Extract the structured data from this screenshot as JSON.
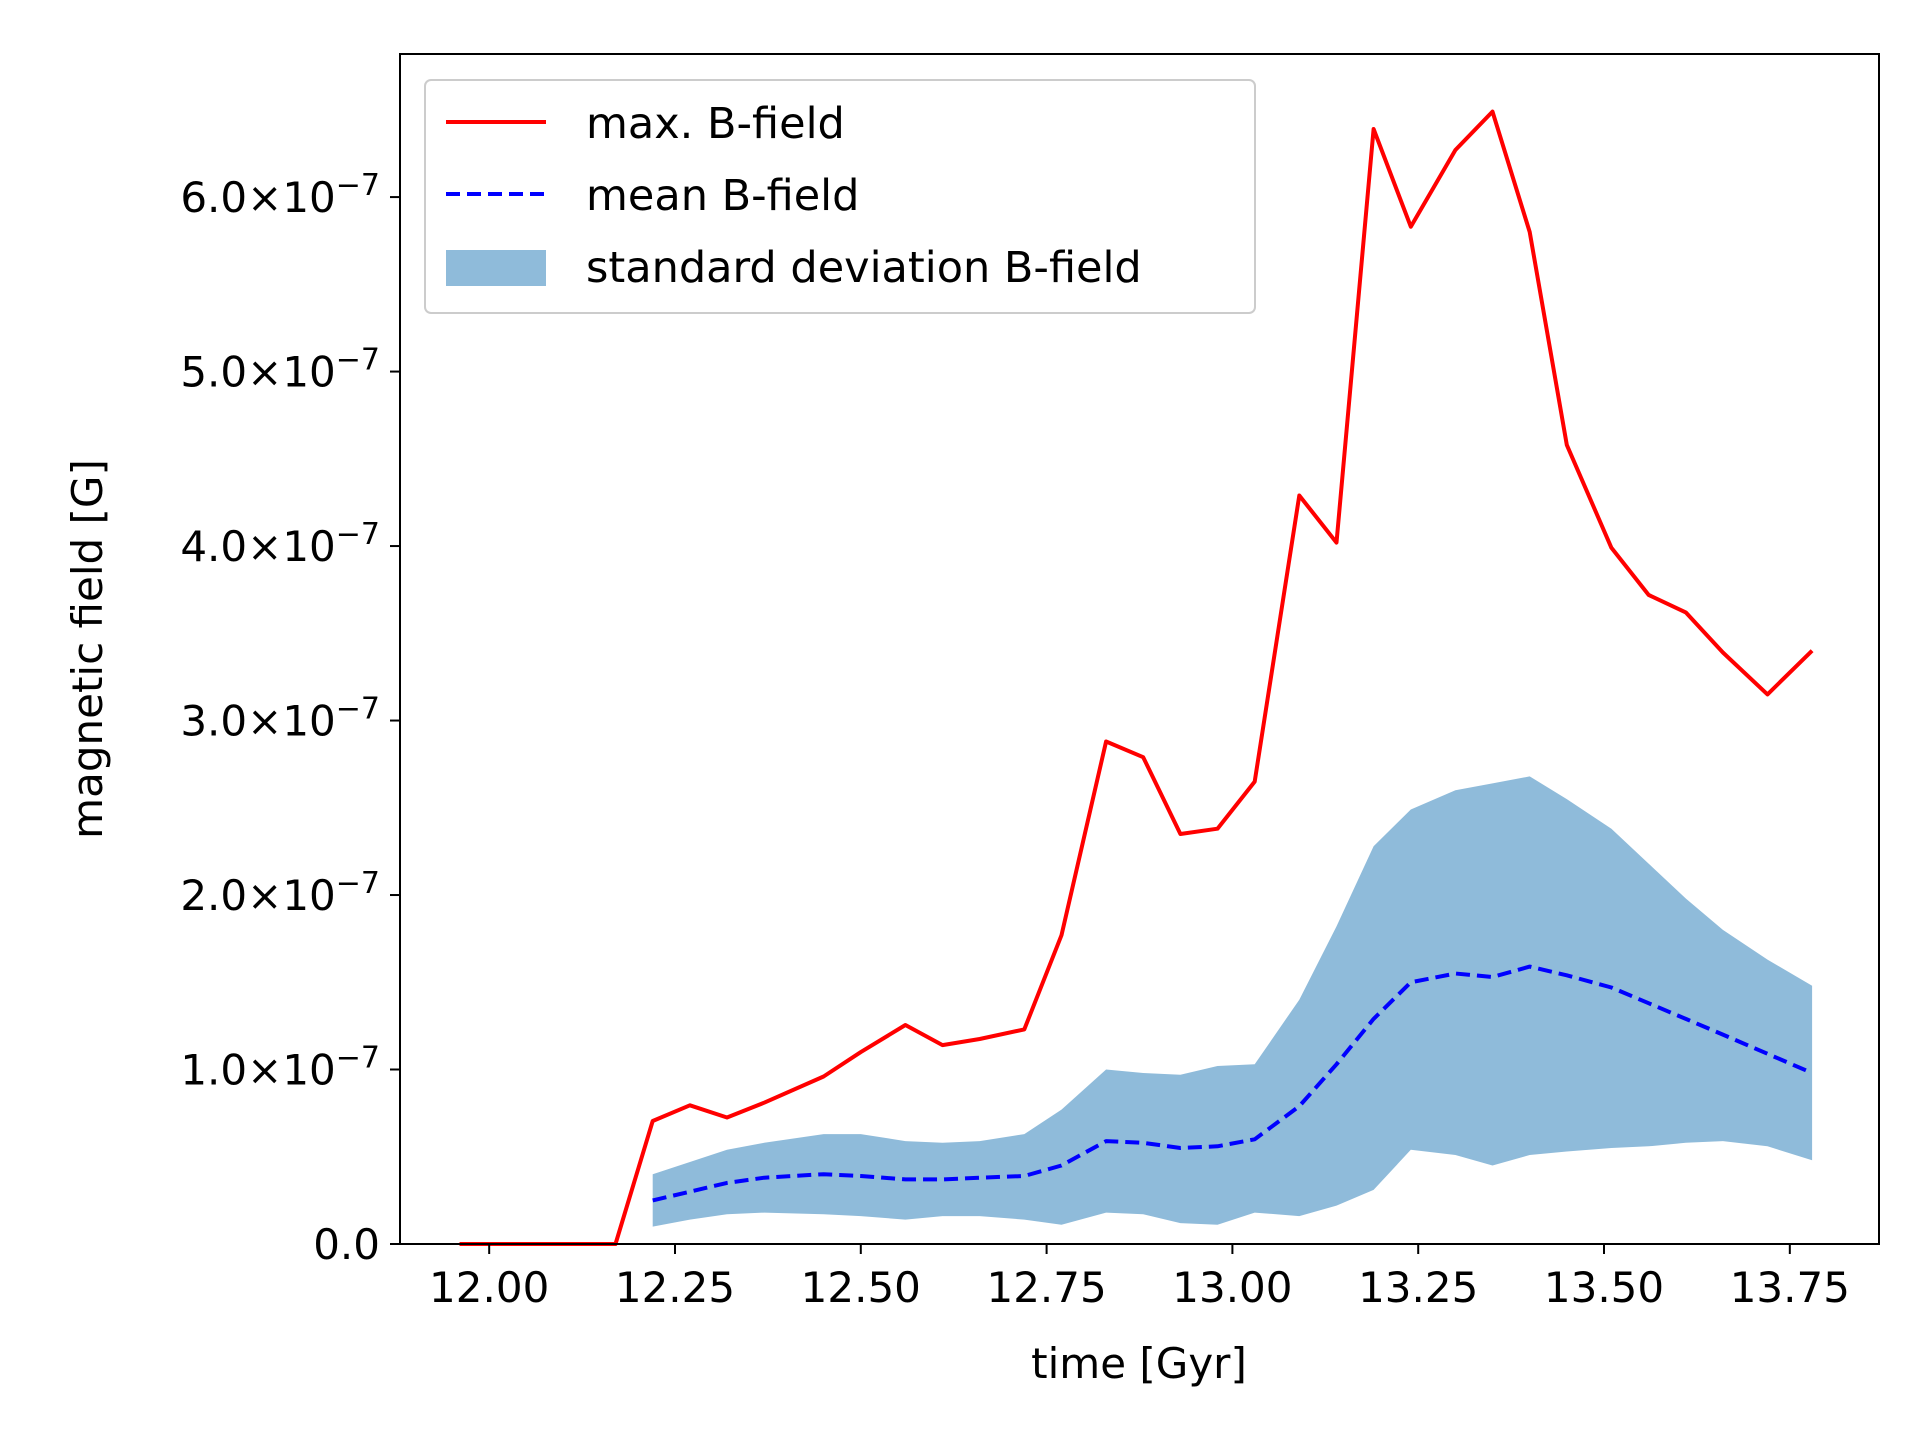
{
  "chart_data": {
    "type": "line",
    "xlabel": "time [Gyr]",
    "ylabel": "magnetic field [G]",
    "xlim": [
      11.88,
      13.87
    ],
    "ylim": [
      0,
      6.82e-07
    ],
    "xticks": [
      12.0,
      12.25,
      12.5,
      12.75,
      13.0,
      13.25,
      13.5,
      13.75
    ],
    "xtick_labels": [
      "12.00",
      "12.25",
      "12.50",
      "12.75",
      "13.00",
      "13.25",
      "13.50",
      "13.75"
    ],
    "yticks": [
      {
        "value": 0,
        "mantissa": "0.0",
        "exponent": ""
      },
      {
        "value": 1e-07,
        "mantissa": "1.0×10",
        "exponent": "−7"
      },
      {
        "value": 2e-07,
        "mantissa": "2.0×10",
        "exponent": "−7"
      },
      {
        "value": 3e-07,
        "mantissa": "3.0×10",
        "exponent": "−7"
      },
      {
        "value": 4e-07,
        "mantissa": "4.0×10",
        "exponent": "−7"
      },
      {
        "value": 5e-07,
        "mantissa": "5.0×10",
        "exponent": "−7"
      },
      {
        "value": 6e-07,
        "mantissa": "6.0×10",
        "exponent": "−7"
      }
    ],
    "grid": false,
    "legend_position": "upper-left",
    "series": [
      {
        "name": "max. B-field",
        "style": "solid",
        "color": "#ff0000",
        "x": [
          11.96,
          12.01,
          12.07,
          12.12,
          12.17,
          12.22,
          12.27,
          12.32,
          12.37,
          12.45,
          12.5,
          12.56,
          12.61,
          12.66,
          12.72,
          12.77,
          12.83,
          12.88,
          12.93,
          12.98,
          13.03,
          13.09,
          13.14,
          13.19,
          13.24,
          13.3,
          13.35,
          13.4,
          13.45,
          13.51,
          13.56,
          13.61,
          13.66,
          13.72,
          13.78
        ],
        "y": [
          0,
          0,
          0,
          0,
          0,
          7.05e-08,
          7.95e-08,
          7.25e-08,
          8.1e-08,
          9.6e-08,
          1.1e-07,
          1.255e-07,
          1.14e-07,
          1.175e-07,
          1.23e-07,
          1.77e-07,
          2.88e-07,
          2.79e-07,
          2.35e-07,
          2.38e-07,
          2.65e-07,
          4.29e-07,
          4.02e-07,
          6.39e-07,
          5.83e-07,
          6.27e-07,
          6.49e-07,
          5.8e-07,
          4.58e-07,
          3.99e-07,
          3.72e-07,
          3.62e-07,
          3.39e-07,
          3.15e-07,
          3.4e-07
        ]
      },
      {
        "name": "mean B-field",
        "style": "dashed",
        "color": "#0000ff",
        "x": [
          12.22,
          12.27,
          12.32,
          12.37,
          12.45,
          12.5,
          12.56,
          12.61,
          12.66,
          12.72,
          12.77,
          12.83,
          12.88,
          12.93,
          12.98,
          13.03,
          13.09,
          13.14,
          13.19,
          13.24,
          13.3,
          13.35,
          13.4,
          13.45,
          13.51,
          13.56,
          13.61,
          13.66,
          13.72,
          13.78
        ],
        "y": [
          2.5e-08,
          3e-08,
          3.5e-08,
          3.8e-08,
          4e-08,
          3.9e-08,
          3.7e-08,
          3.7e-08,
          3.8e-08,
          3.9e-08,
          4.5e-08,
          5.9e-08,
          5.8e-08,
          5.5e-08,
          5.6e-08,
          6e-08,
          7.9e-08,
          1.03e-07,
          1.29e-07,
          1.5e-07,
          1.55e-07,
          1.53e-07,
          1.59e-07,
          1.54e-07,
          1.47e-07,
          1.38e-07,
          1.29e-07,
          1.2e-07,
          1.09e-07,
          9.8e-08
        ]
      },
      {
        "name": "standard deviation B-field",
        "style": "band",
        "color": "#8fbbda",
        "x": [
          12.22,
          12.27,
          12.32,
          12.37,
          12.45,
          12.5,
          12.56,
          12.61,
          12.66,
          12.72,
          12.77,
          12.83,
          12.88,
          12.93,
          12.98,
          13.03,
          13.09,
          13.14,
          13.19,
          13.24,
          13.3,
          13.35,
          13.4,
          13.45,
          13.51,
          13.56,
          13.61,
          13.66,
          13.72,
          13.78
        ],
        "upper": [
          4e-08,
          4.7e-08,
          5.4e-08,
          5.8e-08,
          6.3e-08,
          6.3e-08,
          5.9e-08,
          5.8e-08,
          5.9e-08,
          6.3e-08,
          7.7e-08,
          1e-07,
          9.8e-08,
          9.7e-08,
          1.02e-07,
          1.03e-07,
          1.4e-07,
          1.82e-07,
          2.28e-07,
          2.49e-07,
          2.6e-07,
          2.64e-07,
          2.68e-07,
          2.55e-07,
          2.38e-07,
          2.18e-07,
          1.98e-07,
          1.8e-07,
          1.63e-07,
          1.48e-07
        ],
        "lower": [
          1e-08,
          1.4e-08,
          1.7e-08,
          1.8e-08,
          1.7e-08,
          1.6e-08,
          1.4e-08,
          1.6e-08,
          1.6e-08,
          1.4e-08,
          1.1e-08,
          1.8e-08,
          1.7e-08,
          1.2e-08,
          1.1e-08,
          1.8e-08,
          1.6e-08,
          2.2e-08,
          3.1e-08,
          5.4e-08,
          5.1e-08,
          4.5e-08,
          5.1e-08,
          5.3e-08,
          5.5e-08,
          5.6e-08,
          5.8e-08,
          5.9e-08,
          5.6e-08,
          4.8e-08
        ]
      }
    ]
  }
}
